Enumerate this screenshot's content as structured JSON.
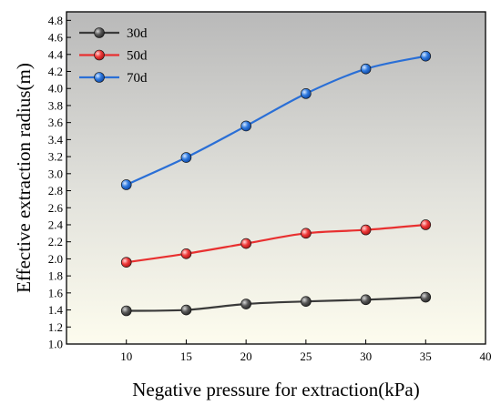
{
  "chart_data": {
    "type": "line",
    "title": "",
    "xlabel": "Negative pressure for extraction(kPa)",
    "ylabel": "Effective extraction radius(m)",
    "xlim": [
      5,
      40
    ],
    "ylim": [
      1.0,
      4.9
    ],
    "xticks": [
      10,
      15,
      20,
      25,
      30,
      35,
      40
    ],
    "yticks": [
      1.0,
      1.2,
      1.4,
      1.6,
      1.8,
      2.0,
      2.2,
      2.4,
      2.6,
      2.8,
      3.0,
      3.2,
      3.4,
      3.6,
      3.8,
      4.0,
      4.2,
      4.4,
      4.6,
      4.8
    ],
    "grid": false,
    "legend_position": "top-left",
    "background": "vertical gradient from gray (top) to pale cream (bottom)",
    "x": [
      10,
      15,
      20,
      25,
      30,
      35
    ],
    "series": [
      {
        "name": "30d",
        "color": "#3a3a3a",
        "values": [
          1.39,
          1.4,
          1.47,
          1.5,
          1.52,
          1.55
        ]
      },
      {
        "name": "50d",
        "color": "#e83030",
        "values": [
          1.96,
          2.06,
          2.18,
          2.3,
          2.34,
          2.4
        ]
      },
      {
        "name": "70d",
        "color": "#2a6fd6",
        "values": [
          2.87,
          3.19,
          3.56,
          3.94,
          4.23,
          4.38
        ]
      }
    ]
  }
}
